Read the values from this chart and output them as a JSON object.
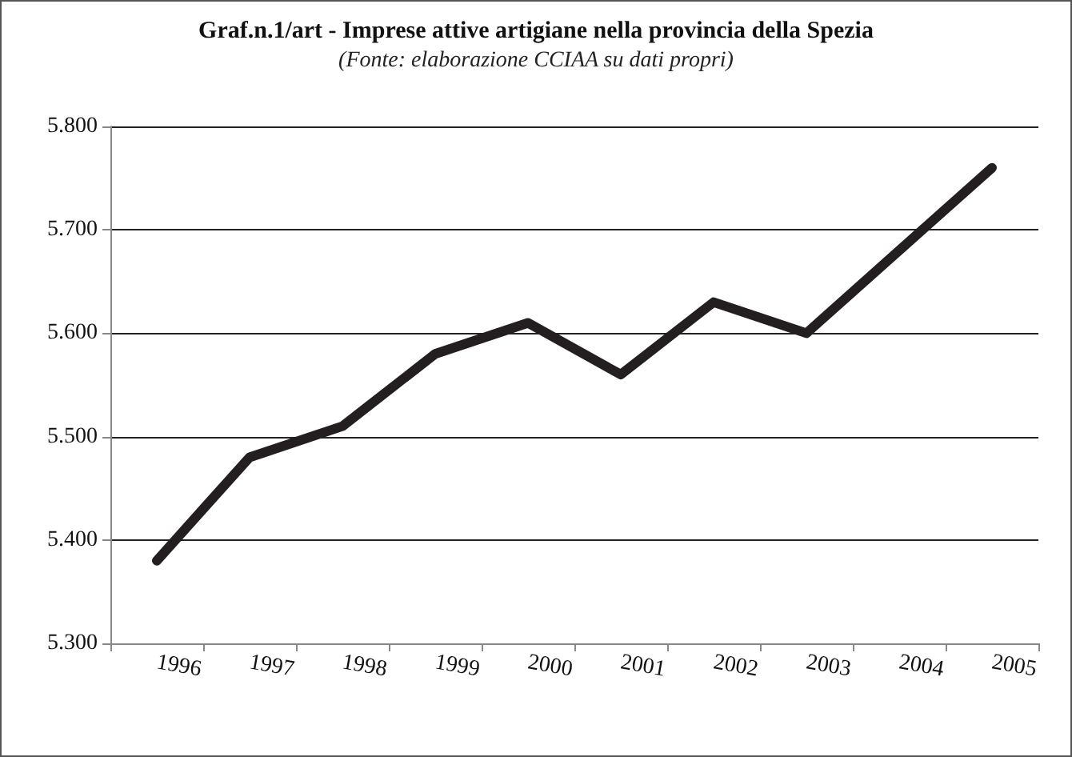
{
  "chart_data": {
    "type": "line",
    "title": "Graf.n.1/art - Imprese attive artigiane nella provincia della Spezia",
    "subtitle": "(Fonte: elaborazione CCIAA su dati propri)",
    "categories": [
      "1996",
      "1997",
      "1998",
      "1999",
      "2000",
      "2001",
      "2002",
      "2003",
      "2004",
      "2005"
    ],
    "series": [
      {
        "color": "#231f20",
        "values": [
          5380,
          5480,
          5510,
          5580,
          5610,
          5560,
          5630,
          5600,
          5680,
          5760
        ]
      }
    ],
    "ylim": [
      5300,
      5800
    ],
    "yticks": [
      {
        "value": 5300,
        "label": "5.300"
      },
      {
        "value": 5400,
        "label": "5.400"
      },
      {
        "value": 5500,
        "label": "5.500"
      },
      {
        "value": 5600,
        "label": "5.600"
      },
      {
        "value": 5700,
        "label": "5.700"
      },
      {
        "value": 5800,
        "label": "5.800"
      }
    ],
    "grid": "y"
  }
}
